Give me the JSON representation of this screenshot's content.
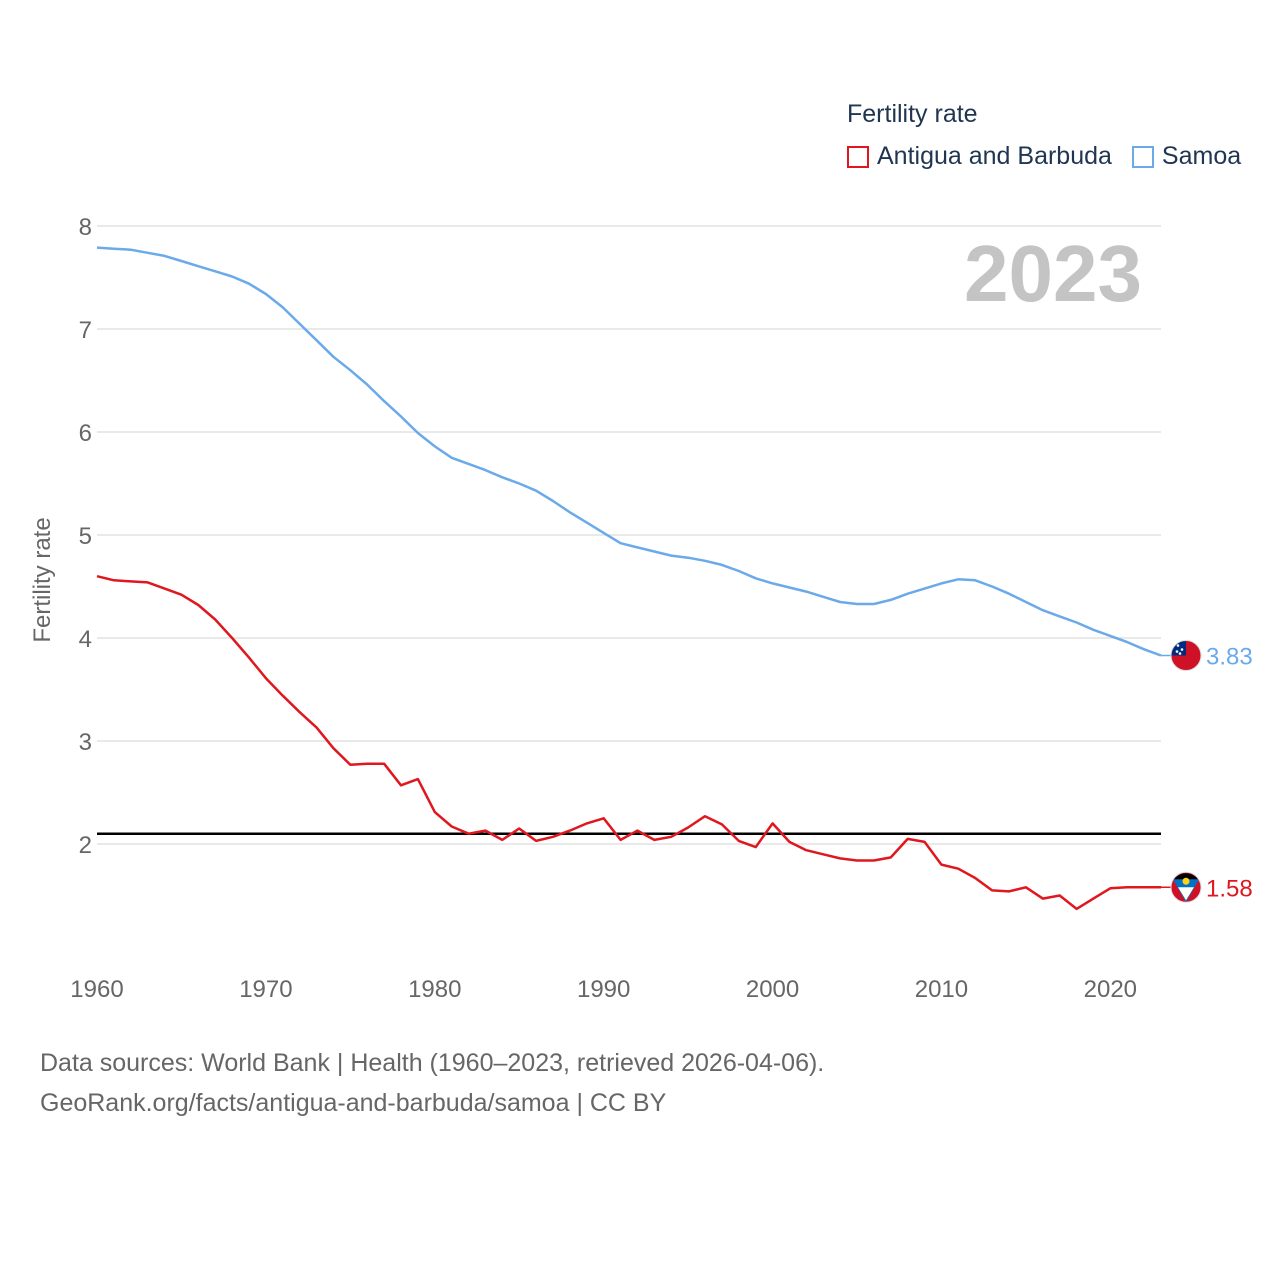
{
  "legend": {
    "title": "Fertility rate",
    "items": [
      {
        "label": "Antigua and Barbuda",
        "color": "#e0171e"
      },
      {
        "label": "Samoa",
        "color": "#6aaaeb"
      }
    ]
  },
  "year_label": "2023",
  "footer": {
    "line1": "Data sources: World Bank | Health (1960–2023, retrieved 2026-04-06).",
    "line2": "GeoRank.org/facts/antigua-and-barbuda/samoa | CC BY"
  },
  "chart_data": {
    "type": "line",
    "title": "Fertility rate",
    "xlabel": "",
    "ylabel": "Fertility rate",
    "xlim": [
      1960,
      2023
    ],
    "ylim": [
      1,
      8
    ],
    "x_ticks": [
      1960,
      1970,
      1980,
      1990,
      2000,
      2010,
      2020
    ],
    "y_ticks": [
      2,
      3,
      4,
      5,
      6,
      7,
      8
    ],
    "reference_line": 2.1,
    "x": [
      1960,
      1961,
      1962,
      1963,
      1964,
      1965,
      1966,
      1967,
      1968,
      1969,
      1970,
      1971,
      1972,
      1973,
      1974,
      1975,
      1976,
      1977,
      1978,
      1979,
      1980,
      1981,
      1982,
      1983,
      1984,
      1985,
      1986,
      1987,
      1988,
      1989,
      1990,
      1991,
      1992,
      1993,
      1994,
      1995,
      1996,
      1997,
      1998,
      1999,
      2000,
      2001,
      2002,
      2003,
      2004,
      2005,
      2006,
      2007,
      2008,
      2009,
      2010,
      2011,
      2012,
      2013,
      2014,
      2015,
      2016,
      2017,
      2018,
      2019,
      2020,
      2021,
      2022,
      2023
    ],
    "series": [
      {
        "name": "Antigua and Barbuda",
        "color": "#e0171e",
        "end_label": "1.58",
        "values": [
          4.6,
          4.56,
          4.55,
          4.54,
          4.48,
          4.42,
          4.32,
          4.18,
          4.0,
          3.81,
          3.61,
          3.44,
          3.28,
          3.13,
          2.93,
          2.77,
          2.78,
          2.78,
          2.57,
          2.63,
          2.31,
          2.17,
          2.1,
          2.13,
          2.04,
          2.15,
          2.03,
          2.07,
          2.13,
          2.2,
          2.25,
          2.04,
          2.13,
          2.04,
          2.07,
          2.16,
          2.27,
          2.19,
          2.03,
          1.97,
          2.2,
          2.02,
          1.94,
          1.9,
          1.86,
          1.84,
          1.84,
          1.87,
          2.05,
          2.02,
          1.8,
          1.76,
          1.67,
          1.55,
          1.54,
          1.58,
          1.47,
          1.5,
          1.37,
          1.47,
          1.57,
          1.58,
          1.58,
          1.58
        ]
      },
      {
        "name": "Samoa",
        "color": "#6aaaeb",
        "end_label": "3.83",
        "values": [
          7.79,
          7.78,
          7.77,
          7.74,
          7.71,
          7.66,
          7.61,
          7.56,
          7.51,
          7.44,
          7.34,
          7.21,
          7.05,
          6.89,
          6.73,
          6.6,
          6.46,
          6.3,
          6.15,
          5.99,
          5.86,
          5.75,
          5.69,
          5.63,
          5.56,
          5.5,
          5.43,
          5.33,
          5.22,
          5.12,
          5.02,
          4.92,
          4.88,
          4.84,
          4.8,
          4.78,
          4.75,
          4.71,
          4.65,
          4.58,
          4.53,
          4.49,
          4.45,
          4.4,
          4.35,
          4.33,
          4.33,
          4.37,
          4.43,
          4.48,
          4.53,
          4.57,
          4.56,
          4.5,
          4.43,
          4.35,
          4.27,
          4.21,
          4.15,
          4.08,
          4.02,
          3.96,
          3.89,
          3.83
        ]
      }
    ]
  }
}
